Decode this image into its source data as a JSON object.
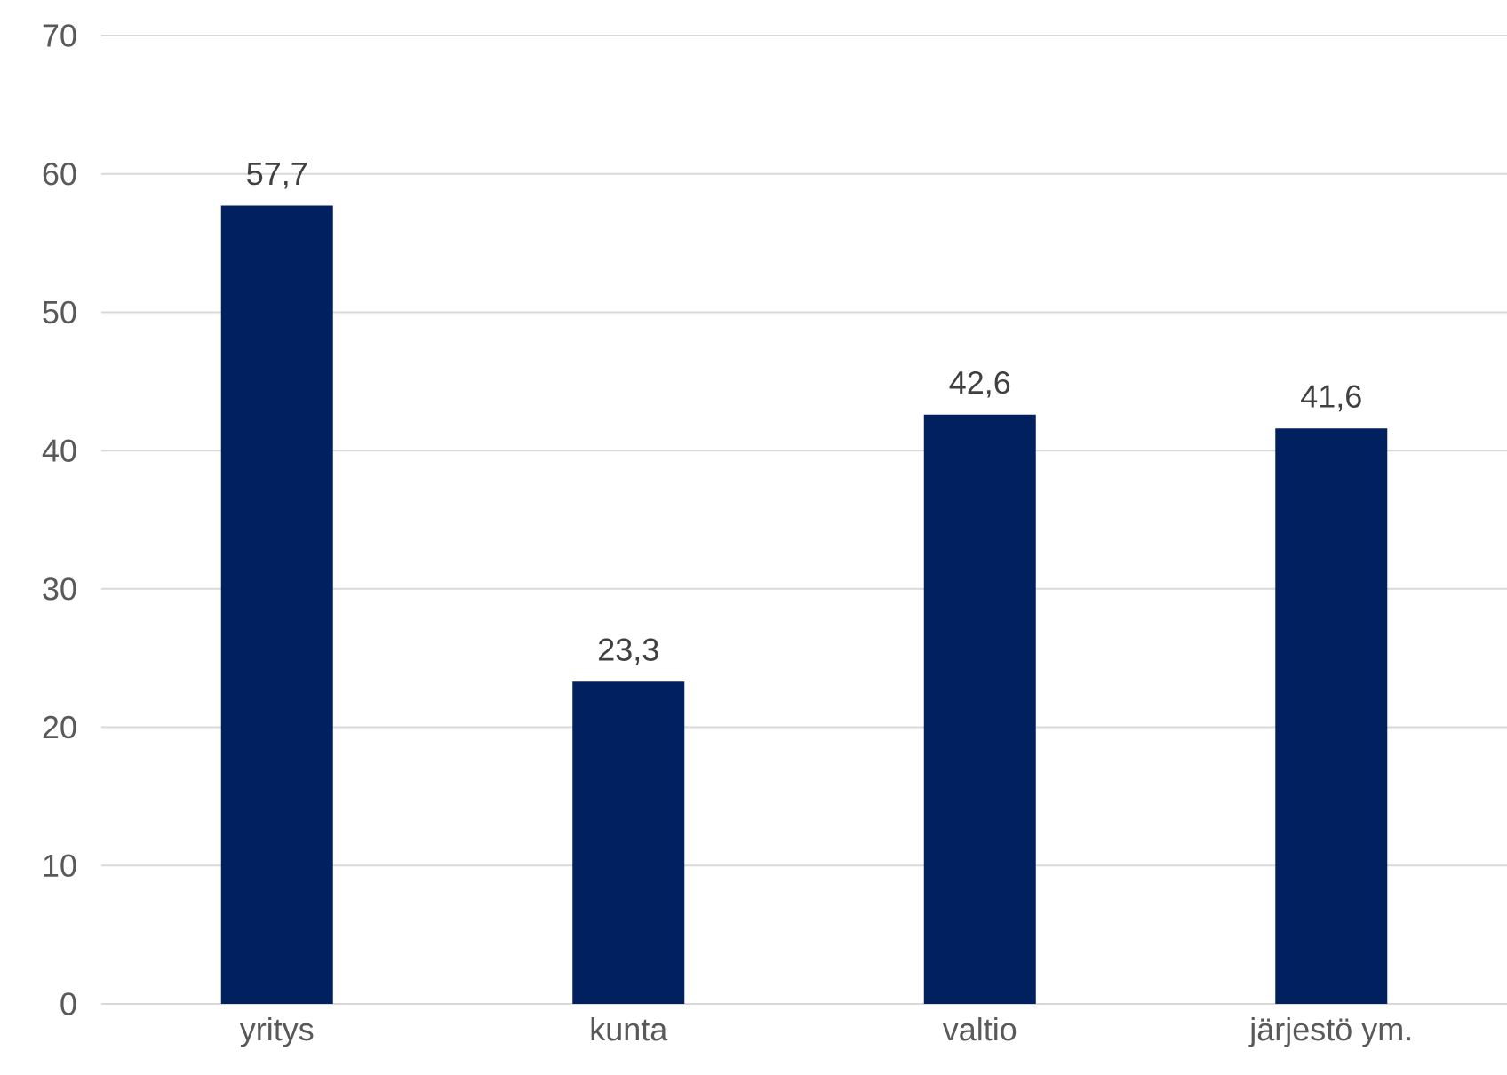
{
  "chart_data": {
    "type": "bar",
    "categories": [
      "yritys",
      "kunta",
      "valtio",
      "järjestö ym."
    ],
    "values": [
      57.7,
      23.3,
      42.6,
      41.6
    ],
    "value_labels": [
      "57,7",
      "23,3",
      "42,6",
      "41,6"
    ],
    "color": "#002060",
    "ylim": [
      0,
      70
    ],
    "yticks": [
      0,
      10,
      20,
      30,
      40,
      50,
      60,
      70
    ],
    "grid": "y"
  }
}
